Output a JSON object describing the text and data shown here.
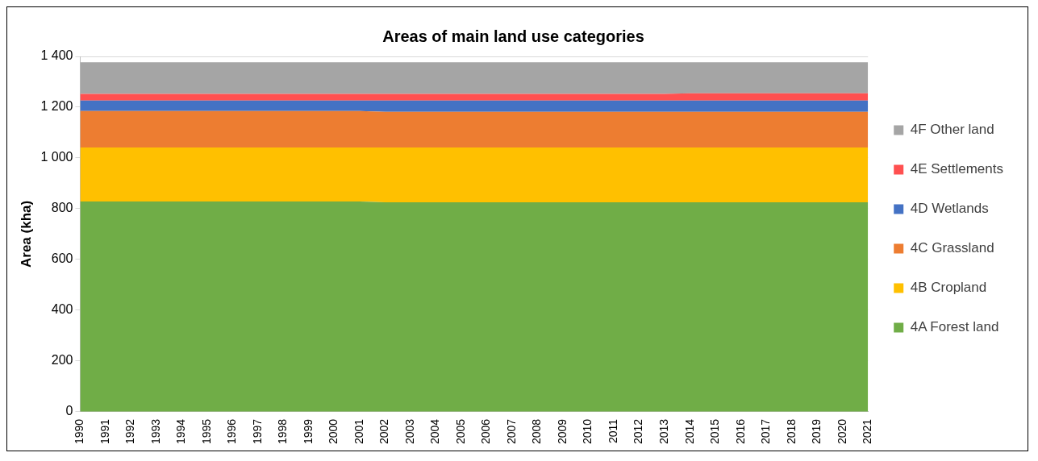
{
  "chart_data": {
    "type": "area",
    "stacked": true,
    "title": "Areas of main land use categories",
    "ylabel": "Area (kha)",
    "categories": [
      "1990",
      "1991",
      "1992",
      "1993",
      "1994",
      "1995",
      "1996",
      "1997",
      "1998",
      "1999",
      "2000",
      "2001",
      "2002",
      "2003",
      "2004",
      "2005",
      "2006",
      "2007",
      "2008",
      "2009",
      "2010",
      "2011",
      "2012",
      "2013",
      "2014",
      "2015",
      "2016",
      "2017",
      "2018",
      "2019",
      "2020",
      "2021"
    ],
    "series": [
      {
        "name": "4A Forest land",
        "color": "#70ad47",
        "values": [
          828,
          828,
          828,
          828,
          828,
          828,
          828,
          828,
          828,
          828,
          828,
          828,
          825,
          825,
          825,
          825,
          825,
          825,
          825,
          825,
          825,
          825,
          825,
          825,
          825,
          825,
          825,
          825,
          825,
          825,
          825,
          825
        ]
      },
      {
        "name": "4B Cropland",
        "color": "#ffc000",
        "values": [
          213,
          213,
          213,
          213,
          213,
          213,
          213,
          213,
          213,
          213,
          213,
          213,
          216,
          216,
          216,
          216,
          216,
          216,
          216,
          216,
          216,
          216,
          216,
          216,
          216,
          216,
          216,
          216,
          216,
          216,
          216,
          216
        ]
      },
      {
        "name": "4C Grassland",
        "color": "#ed7d31",
        "values": [
          144,
          144,
          144,
          144,
          144,
          144,
          144,
          144,
          144,
          144,
          144,
          144,
          141,
          141,
          141,
          141,
          141,
          141,
          141,
          141,
          141,
          141,
          141,
          141,
          141,
          141,
          141,
          141,
          141,
          141,
          141,
          141
        ]
      },
      {
        "name": "4D Wetlands",
        "color": "#4472c4",
        "values": [
          41,
          41,
          41,
          41,
          41,
          41,
          41,
          41,
          41,
          41,
          41,
          41,
          44,
          44,
          44,
          44,
          44,
          44,
          44,
          44,
          44,
          44,
          44,
          44,
          44,
          44,
          44,
          44,
          44,
          44,
          44,
          44
        ]
      },
      {
        "name": "4E Settlements",
        "color": "#ff5050",
        "values": [
          26,
          26,
          26,
          26,
          26,
          26,
          26,
          26,
          26,
          26,
          26,
          26,
          26,
          26,
          26,
          26,
          26,
          26,
          26,
          26,
          26,
          26,
          26,
          26,
          29,
          29,
          29,
          29,
          29,
          29,
          29,
          29
        ]
      },
      {
        "name": "4F Other land",
        "color": "#a5a5a5",
        "values": [
          125,
          125,
          125,
          125,
          125,
          125,
          125,
          125,
          125,
          125,
          125,
          125,
          125,
          125,
          125,
          125,
          125,
          125,
          125,
          125,
          125,
          125,
          125,
          125,
          122,
          122,
          122,
          122,
          122,
          122,
          122,
          122
        ]
      }
    ],
    "ylim": [
      0,
      1400
    ],
    "yticks": [
      0,
      {
        "value": 200,
        "label": "200"
      },
      {
        "value": 400,
        "label": "400"
      },
      {
        "value": 600,
        "label": "600"
      },
      {
        "value": 800,
        "label": "800"
      },
      {
        "value": 1000,
        "label": "1 000"
      },
      {
        "value": 1200,
        "label": "1 200"
      },
      {
        "value": 1400,
        "label": "1 400"
      }
    ],
    "grid": "y",
    "legend": "right"
  }
}
